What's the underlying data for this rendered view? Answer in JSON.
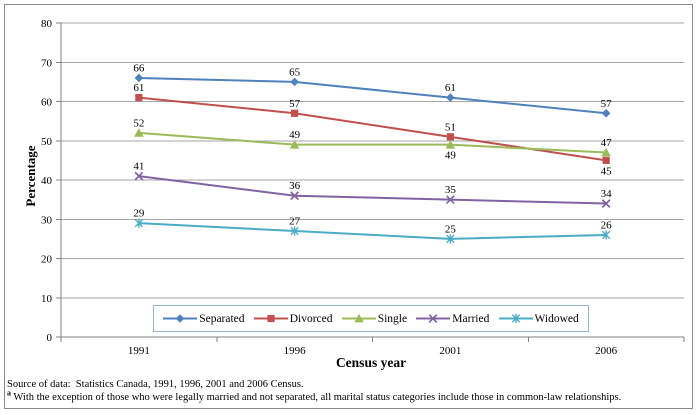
{
  "chart_data": {
    "type": "line",
    "title": "",
    "xlabel": "Census year",
    "ylabel": "Percentage",
    "categories": [
      "1991",
      "1996",
      "2001",
      "2006"
    ],
    "ylim": [
      0,
      80
    ],
    "ytick_step": 10,
    "grid": true,
    "legend_position": "bottom-inside",
    "series": [
      {
        "name": "Separated",
        "color": "#4F81BD",
        "marker": "diamond",
        "values": [
          66,
          65,
          61,
          57
        ],
        "label_positions": [
          "above",
          "above",
          "above",
          "above"
        ]
      },
      {
        "name": "Divorced",
        "color": "#C0504D",
        "marker": "square",
        "values": [
          61,
          57,
          51,
          45
        ],
        "label_positions": [
          "above",
          "above",
          "above",
          "below"
        ]
      },
      {
        "name": "Single",
        "color": "#9BBB59",
        "marker": "triangle",
        "values": [
          52,
          49,
          49,
          47
        ],
        "label_positions": [
          "above",
          "above",
          "below",
          "above"
        ]
      },
      {
        "name": "Married",
        "color": "#8064A2",
        "marker": "x",
        "values": [
          41,
          36,
          35,
          34
        ],
        "label_positions": [
          "above",
          "above",
          "above",
          "above"
        ]
      },
      {
        "name": "Widowed",
        "color": "#4BACC6",
        "marker": "asterisk",
        "values": [
          29,
          27,
          25,
          26
        ],
        "label_positions": [
          "above",
          "above",
          "above",
          "above"
        ]
      }
    ]
  },
  "footnotes": {
    "source": "Source of data:  Statistics Canada, 1991, 1996, 2001 and 2006 Census.",
    "note_marker": "a",
    "note_text": " With the exception of those who were legally married and not separated, all marital status categories include those in common-law relationships."
  },
  "colors": {
    "gridline": "#A6A6A6",
    "axis": "#808080",
    "legend_border": "#95B3D7",
    "frame_border": "#8a8a8a"
  }
}
